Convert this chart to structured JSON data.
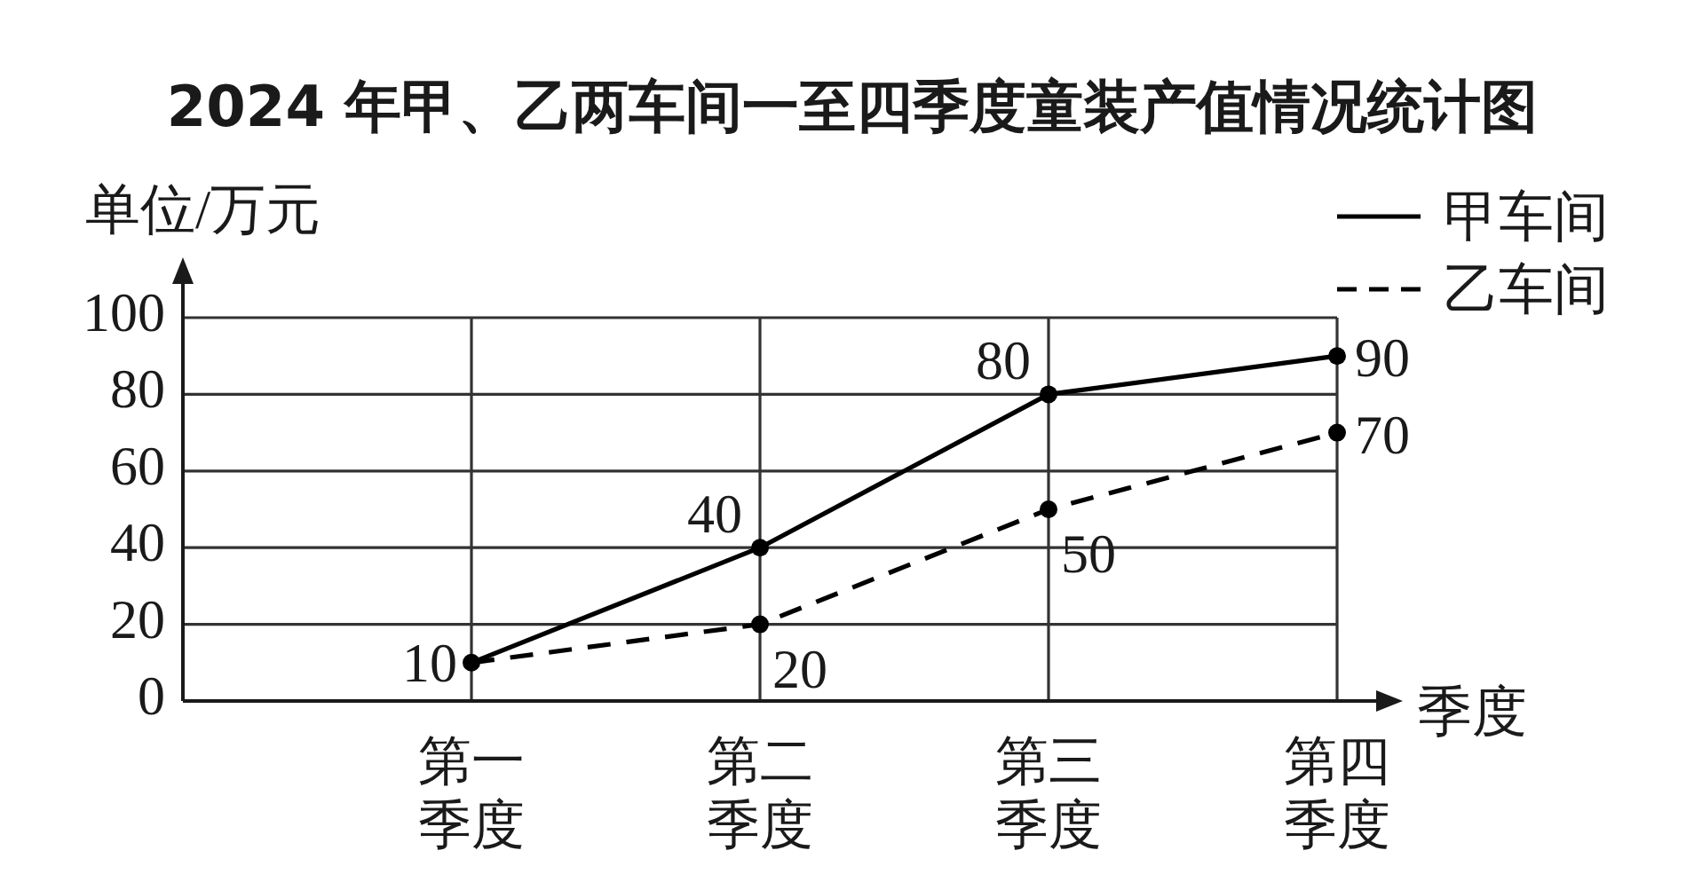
{
  "chart_data": {
    "type": "line",
    "title": "2024 年甲、乙两车间一至四季度童装产值情况统计图",
    "xlabel": "季度",
    "ylabel": "单位/万元",
    "categories": [
      "第一季度",
      "第二季度",
      "第三季度",
      "第四季度"
    ],
    "series": [
      {
        "name": "甲车间",
        "color": "#000000",
        "line_style": "solid",
        "values": [
          10,
          40,
          80,
          90
        ],
        "value_labels": [
          "10",
          "40",
          "80",
          "90"
        ]
      },
      {
        "name": "乙车间",
        "color": "#000000",
        "line_style": "dashed",
        "values": [
          10,
          20,
          50,
          70
        ],
        "value_labels": [
          null,
          "20",
          "50",
          "70"
        ]
      }
    ],
    "ylim": [
      0,
      100
    ],
    "yticks": [
      0,
      20,
      40,
      60,
      80,
      100
    ],
    "grid": true,
    "legend": "top right",
    "marker": "circle"
  }
}
